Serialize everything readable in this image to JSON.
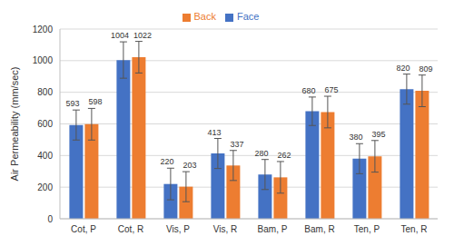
{
  "chart_data": {
    "type": "bar",
    "y_label": "Air Permeability (mm/sec)",
    "categories": [
      "Cot, P",
      "Cot, R",
      "Vis, P",
      "Vis, R",
      "Bam, P",
      "Bam, R",
      "Ten, P",
      "Ten, R"
    ],
    "series": [
      {
        "name": "Face",
        "color": "#4472c4",
        "values": [
          593,
          1004,
          220,
          413,
          280,
          680,
          380,
          820
        ],
        "errors": [
          95,
          115,
          100,
          95,
          95,
          90,
          95,
          95
        ]
      },
      {
        "name": "Back",
        "color": "#ed7d31",
        "values": [
          598,
          1022,
          203,
          337,
          262,
          675,
          395,
          809
        ],
        "errors": [
          100,
          100,
          95,
          95,
          100,
          100,
          100,
          100
        ]
      }
    ],
    "ylim": [
      0,
      1200
    ],
    "yticks": [
      0,
      200,
      400,
      600,
      800,
      1000,
      1200
    ],
    "grid": true,
    "legend": "top",
    "data_labels": true
  }
}
